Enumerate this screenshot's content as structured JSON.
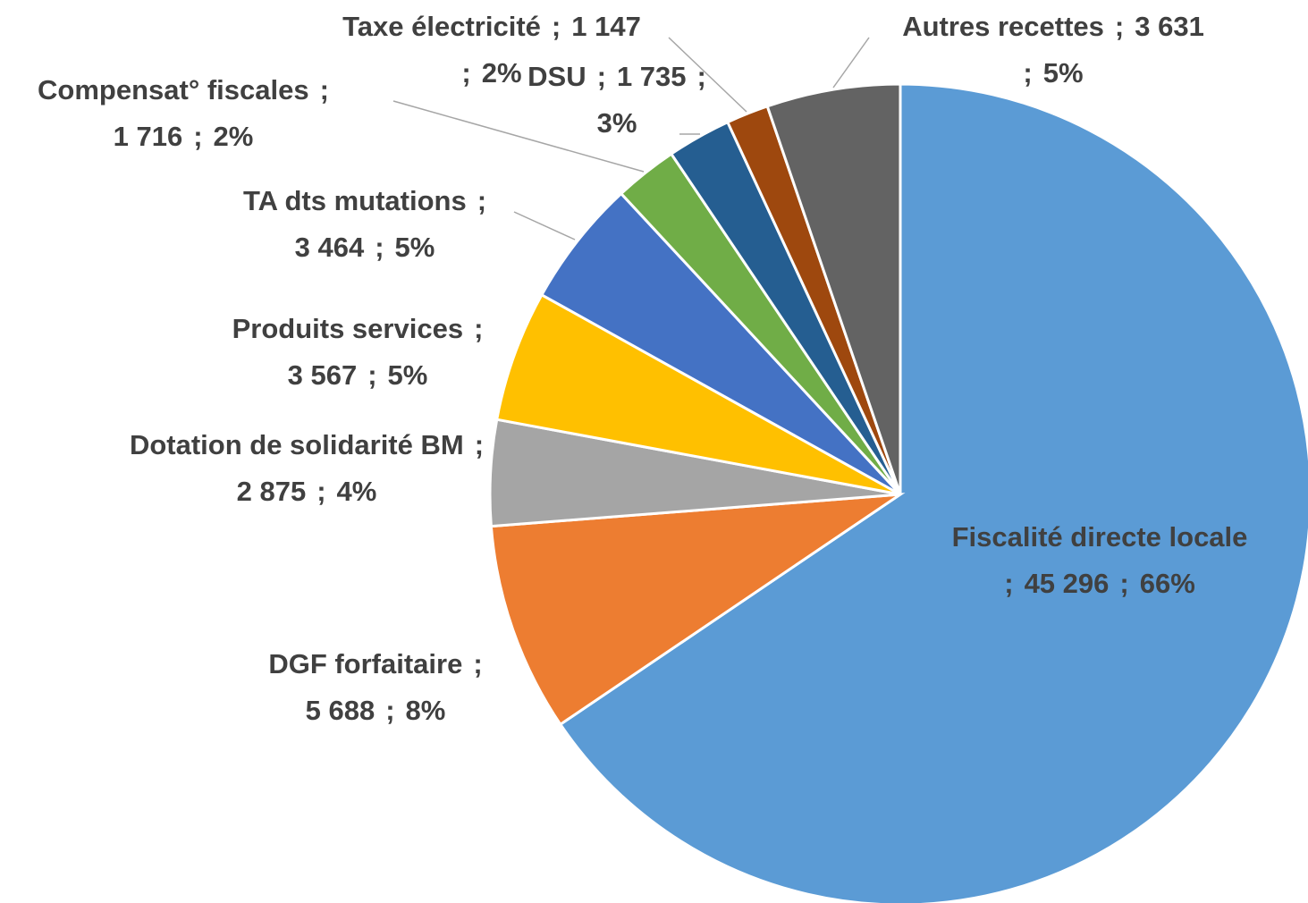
{
  "chart_data": {
    "type": "pie",
    "categories": [
      "Fiscalité directe locale",
      "DGF forfaitaire",
      "Dotation de solidarité BM",
      "Produits  services",
      "TA dts mutations",
      "Compensat° fiscales",
      "DSU",
      "Taxe électricité",
      "Autres recettes"
    ],
    "values": [
      45296,
      5688,
      2875,
      3567,
      3464,
      1716,
      1735,
      1147,
      3631
    ],
    "value_labels": [
      "45 296",
      "5 688",
      "2 875",
      "3 567",
      "3 464",
      "1 716",
      "1 735",
      "1 147",
      "3 631"
    ],
    "percent_labels": [
      "66%",
      "8%",
      "4%",
      "5%",
      "5%",
      "2%",
      "3%",
      "2%",
      "5%"
    ],
    "label_separator": ";",
    "colors": [
      "#5b9bd5",
      "#ed7d31",
      "#a5a5a5",
      "#ffc000",
      "#4472c4",
      "#70ad47",
      "#255e91",
      "#9e480e",
      "#636363"
    ]
  }
}
